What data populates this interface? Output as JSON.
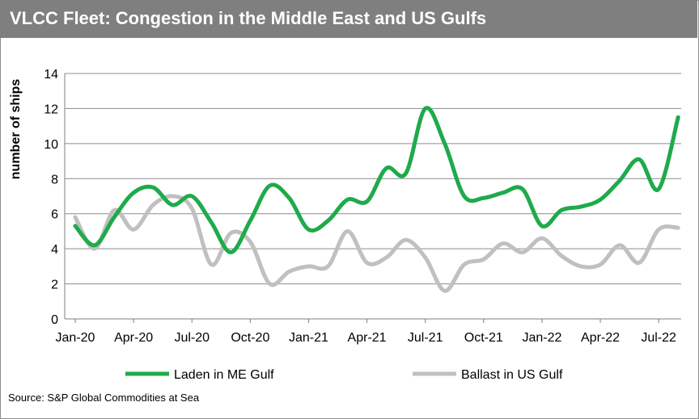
{
  "title": "VLCC Fleet: Congestion in the Middle East and US Gulfs",
  "source": "Source: S&P Global Commodities at Sea",
  "chart_data": {
    "type": "line",
    "title": "VLCC Fleet: Congestion in the Middle East and US Gulfs",
    "ylabel": "number of ships",
    "xlabel": "",
    "ylim": [
      0,
      14
    ],
    "yticks": [
      "0",
      "2",
      "4",
      "6",
      "8",
      "10",
      "12",
      "14"
    ],
    "xticks": [
      "Jan-20",
      "Apr-20",
      "Jul-20",
      "Oct-20",
      "Jan-21",
      "Apr-21",
      "Jul-21",
      "Oct-21",
      "Jan-22",
      "Apr-22",
      "Jul-22"
    ],
    "grid": true,
    "legend": "bottom",
    "x": [
      "Jan-20",
      "Feb-20",
      "Mar-20",
      "Apr-20",
      "May-20",
      "Jun-20",
      "Jul-20",
      "Aug-20",
      "Sep-20",
      "Oct-20",
      "Nov-20",
      "Dec-20",
      "Jan-21",
      "Feb-21",
      "Mar-21",
      "Apr-21",
      "May-21",
      "Jun-21",
      "Jul-21",
      "Aug-21",
      "Sep-21",
      "Oct-21",
      "Nov-21",
      "Dec-21",
      "Jan-22",
      "Feb-22",
      "Mar-22",
      "Apr-22",
      "May-22",
      "Jun-22",
      "Jul-22",
      "Aug-22"
    ],
    "series": [
      {
        "name": "Laden in ME Gulf",
        "color": "#1faa4b",
        "values": [
          5.3,
          4.2,
          5.8,
          7.2,
          7.5,
          6.5,
          7.0,
          5.5,
          3.8,
          5.6,
          7.6,
          6.9,
          5.1,
          5.6,
          6.8,
          6.7,
          8.6,
          8.3,
          12.0,
          10.0,
          7.0,
          6.9,
          7.2,
          7.4,
          5.3,
          6.2,
          6.4,
          6.8,
          7.9,
          9.1,
          7.4,
          11.5
        ]
      },
      {
        "name": "Ballast in US Gulf",
        "color": "#c0c0c0",
        "values": [
          5.8,
          4.0,
          6.2,
          5.1,
          6.5,
          7.0,
          6.3,
          3.1,
          4.9,
          4.4,
          2.0,
          2.7,
          3.0,
          3.0,
          5.0,
          3.2,
          3.5,
          4.5,
          3.5,
          1.6,
          3.1,
          3.4,
          4.3,
          3.8,
          4.6,
          3.6,
          3.0,
          3.1,
          4.2,
          3.2,
          5.1,
          5.2
        ]
      }
    ]
  }
}
